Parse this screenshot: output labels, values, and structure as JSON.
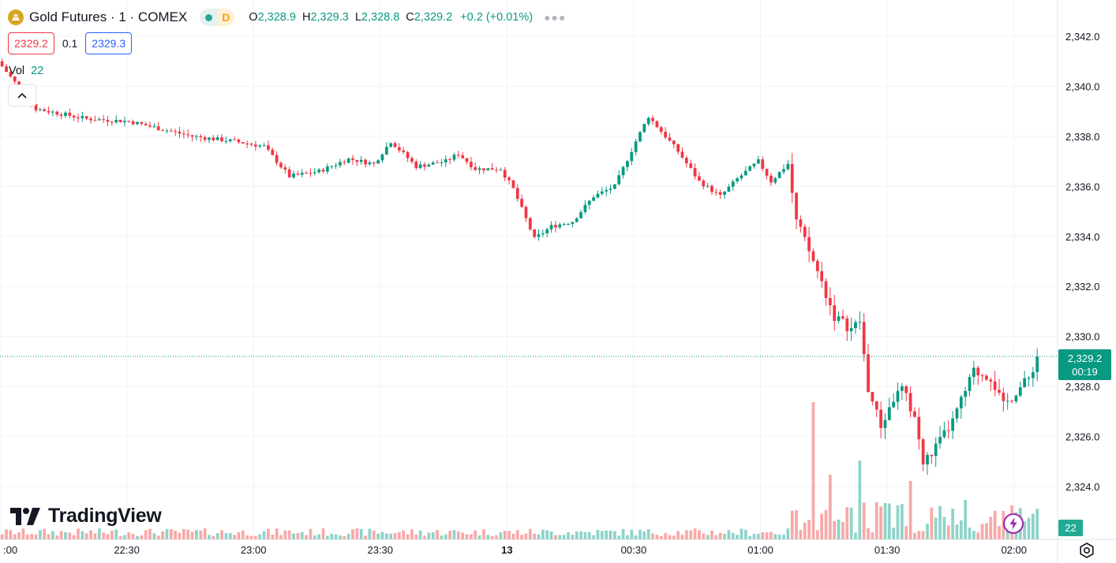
{
  "header": {
    "title": "Gold Futures · 1 · COMEX",
    "interval_badge": "D",
    "ohlc": [
      {
        "label": "O",
        "value": "2,328.9"
      },
      {
        "label": "H",
        "value": "2,329.3"
      },
      {
        "label": "L",
        "value": "2,328.8"
      },
      {
        "label": "C",
        "value": "2,329.2"
      }
    ],
    "change": "+0.2 (+0.01%)"
  },
  "trade": {
    "sell": "2329.2",
    "spread": "0.1",
    "buy": "2329.3"
  },
  "volume_legend": {
    "label": "Vol",
    "value": "22"
  },
  "last_price": {
    "price": "2,329.2",
    "countdown": "00:19"
  },
  "last_volume": "22",
  "logo": "TradingView",
  "colors": {
    "up": "#089981",
    "down": "#f23645",
    "vol_up": "#8fd3c9",
    "vol_down": "#f7a9a7"
  },
  "chart_data": {
    "type": "candlestick",
    "y_axis_ticks": [
      "2,342.0",
      "2,340.0",
      "2,338.0",
      "2,336.0",
      "2,334.0",
      "2,332.0",
      "2,330.0",
      "2,328.0",
      "2,326.0",
      "2,324.0"
    ],
    "y_tick_values": [
      2342,
      2340,
      2338,
      2336,
      2334,
      2332,
      2330,
      2328,
      2326,
      2324
    ],
    "x_axis_ticks": [
      {
        "label": ":00",
        "bar": 0
      },
      {
        "label": "22:30",
        "bar": 30
      },
      {
        "label": "23:00",
        "bar": 60
      },
      {
        "label": "23:30",
        "bar": 90
      },
      {
        "label": "13",
        "bar": 120
      },
      {
        "label": "00:30",
        "bar": 150
      },
      {
        "label": "01:00",
        "bar": 180
      },
      {
        "label": "01:30",
        "bar": 210
      },
      {
        "label": "02:00",
        "bar": 240
      }
    ],
    "bar_minutes": 1,
    "ylim": [
      2322.2,
      2342.9
    ],
    "close_path": [
      [
        0,
        2340.8
      ],
      [
        8,
        2339.1
      ],
      [
        20,
        2338.7
      ],
      [
        30,
        2338.6
      ],
      [
        45,
        2338.0
      ],
      [
        55,
        2337.8
      ],
      [
        62,
        2337.6
      ],
      [
        68,
        2336.4
      ],
      [
        75,
        2336.6
      ],
      [
        82,
        2337.1
      ],
      [
        88,
        2336.9
      ],
      [
        92,
        2337.8
      ],
      [
        98,
        2336.8
      ],
      [
        105,
        2337.0
      ],
      [
        108,
        2337.3
      ],
      [
        112,
        2336.7
      ],
      [
        118,
        2336.7
      ],
      [
        121,
        2335.9
      ],
      [
        126,
        2333.9
      ],
      [
        130,
        2334.4
      ],
      [
        135,
        2334.6
      ],
      [
        140,
        2335.6
      ],
      [
        145,
        2336.0
      ],
      [
        150,
        2337.8
      ],
      [
        153,
        2338.8
      ],
      [
        160,
        2337.4
      ],
      [
        165,
        2336.2
      ],
      [
        170,
        2335.6
      ],
      [
        174,
        2336.3
      ],
      [
        179,
        2337.0
      ],
      [
        182,
        2336.2
      ],
      [
        186,
        2336.9
      ],
      [
        188,
        2334.6
      ],
      [
        193,
        2332.6
      ],
      [
        197,
        2330.8
      ],
      [
        201,
        2330.3
      ],
      [
        203,
        2330.6
      ],
      [
        205,
        2327.9
      ],
      [
        208,
        2326.4
      ],
      [
        211,
        2327.5
      ],
      [
        213,
        2327.9
      ],
      [
        216,
        2326.8
      ],
      [
        218,
        2324.9
      ],
      [
        222,
        2325.8
      ],
      [
        225,
        2326.6
      ],
      [
        230,
        2328.6
      ],
      [
        234,
        2328.4
      ],
      [
        237,
        2327.2
      ],
      [
        240,
        2327.8
      ],
      [
        243,
        2328.3
      ],
      [
        245,
        2329.2
      ]
    ]
  }
}
